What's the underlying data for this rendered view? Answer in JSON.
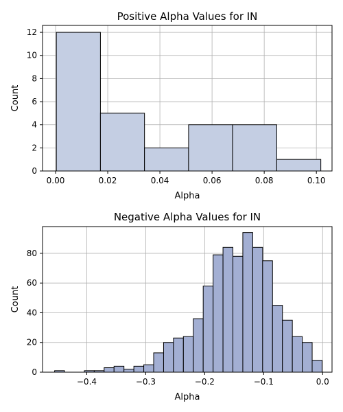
{
  "chart_data": [
    {
      "type": "histogram",
      "title": "Positive Alpha Values for IN",
      "xlabel": "Alpha",
      "ylabel": "Count",
      "xlim": [
        -0.005,
        0.106
      ],
      "ylim": [
        0,
        12.6
      ],
      "xticks": [
        0.0,
        0.02,
        0.04,
        0.06,
        0.08,
        0.1
      ],
      "xtick_labels": [
        "0.00",
        "0.02",
        "0.04",
        "0.06",
        "0.08",
        "0.10"
      ],
      "yticks": [
        0,
        2,
        4,
        6,
        8,
        10,
        12
      ],
      "ytick_labels": [
        "0",
        "2",
        "4",
        "6",
        "8",
        "10",
        "12"
      ],
      "bin_edges": [
        0.0003,
        0.0172,
        0.0341,
        0.051,
        0.0679,
        0.0848,
        0.1017
      ],
      "counts": [
        12,
        5,
        2,
        4,
        4,
        1
      ],
      "bar_color": "#c4cee3",
      "edge_color": "#000000",
      "grid": true
    },
    {
      "type": "histogram",
      "title": "Negative Alpha Values for IN",
      "xlabel": "Alpha",
      "ylabel": "Count",
      "xlim": [
        -0.475,
        0.016
      ],
      "ylim": [
        0,
        98
      ],
      "xticks": [
        -0.4,
        -0.3,
        -0.2,
        -0.1,
        0.0
      ],
      "xtick_labels": [
        "−0.4",
        "−0.3",
        "−0.2",
        "−0.1",
        "0.0"
      ],
      "yticks": [
        0,
        20,
        40,
        60,
        80
      ],
      "ytick_labels": [
        "0",
        "20",
        "40",
        "60",
        "80"
      ],
      "bin_start": -0.4545,
      "bin_width": 0.0168,
      "counts": [
        1,
        0,
        0,
        1,
        1,
        3,
        4,
        2,
        4,
        5,
        13,
        20,
        23,
        24,
        36,
        58,
        79,
        84,
        78,
        94,
        84,
        75,
        45,
        35,
        24,
        20,
        8
      ],
      "bar_color": "#a3afd3",
      "edge_color": "#000000",
      "grid": true
    }
  ]
}
